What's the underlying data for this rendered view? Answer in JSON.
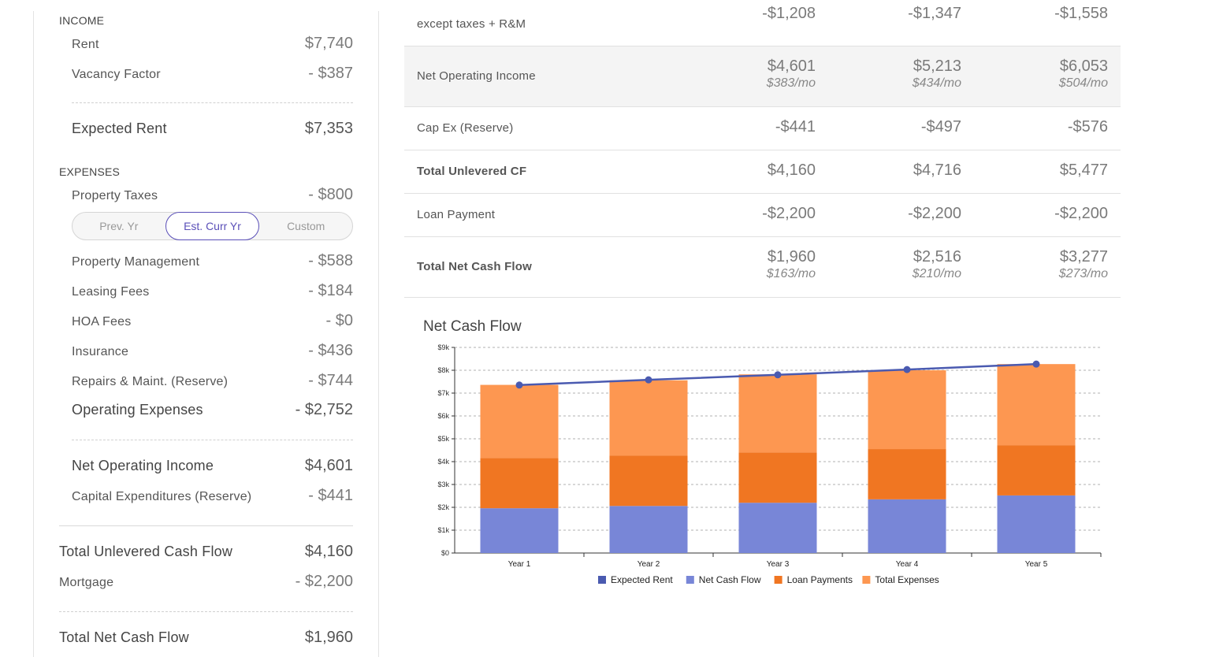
{
  "summary": {
    "income_label": "INCOME",
    "rent_label": "Rent",
    "rent_value": "$7,740",
    "vacancy_label": "Vacancy Factor",
    "vacancy_value": "- $387",
    "expected_rent_label": "Expected Rent",
    "expected_rent_value": "$7,353",
    "expenses_label": "EXPENSES",
    "property_taxes_label": "Property Taxes",
    "property_taxes_value": "- $800",
    "tax_options": [
      "Prev. Yr",
      "Est. Curr Yr",
      "Custom"
    ],
    "tax_selected": "Est. Curr Yr",
    "property_mgmt_label": "Property Management",
    "property_mgmt_value": "- $588",
    "leasing_label": "Leasing Fees",
    "leasing_value": "- $184",
    "hoa_label": "HOA Fees",
    "hoa_value": "- $0",
    "insurance_label": "Insurance",
    "insurance_value": "- $436",
    "repairs_label": "Repairs & Maint. (Reserve)",
    "repairs_value": "- $744",
    "opex_label": "Operating Expenses",
    "opex_value": "- $2,752",
    "noi_label": "Net Operating Income",
    "noi_value": "$4,601",
    "capex_label": "Capital Expenditures (Reserve)",
    "capex_value": "- $441",
    "tucf_label": "Total Unlevered Cash Flow",
    "tucf_value": "$4,160",
    "mortgage_label": "Mortgage",
    "mortgage_value": "- $2,200",
    "tncf_label": "Total Net Cash Flow",
    "tncf_value": "$1,960"
  },
  "table": {
    "rows": [
      {
        "label": "except taxes + R&M",
        "values": [
          "-$1,208",
          "-$1,347",
          "-$1,558"
        ]
      },
      {
        "label": "Net Operating Income",
        "values": [
          "$4,601",
          "$5,213",
          "$6,053"
        ],
        "monthly": [
          "$383",
          "$434",
          "$504"
        ]
      },
      {
        "label": "Cap Ex (Reserve)",
        "values": [
          "-$441",
          "-$497",
          "-$576"
        ]
      },
      {
        "label": "Total Unlevered CF",
        "values": [
          "$4,160",
          "$4,716",
          "$5,477"
        ]
      },
      {
        "label": "Loan Payment",
        "values": [
          "-$2,200",
          "-$2,200",
          "-$2,200"
        ]
      },
      {
        "label": "Total Net Cash Flow",
        "values": [
          "$1,960",
          "$2,516",
          "$3,277"
        ],
        "monthly": [
          "$163",
          "$210",
          "$273"
        ]
      }
    ],
    "mo_suffix": "/mo"
  },
  "chart_data": {
    "type": "bar",
    "title": "Net Cash Flow",
    "categories": [
      "Year 1",
      "Year 2",
      "Year 3",
      "Year 4",
      "Year 5"
    ],
    "y_ticks": [
      "$0",
      "$1k",
      "$2k",
      "$3k",
      "$4k",
      "$5k",
      "$6k",
      "$7k",
      "$8k",
      "$9k"
    ],
    "ylim": [
      0,
      9000
    ],
    "stacked": true,
    "grid": true,
    "legend_position": "bottom",
    "series": [
      {
        "name": "Net Cash Flow",
        "type": "bar",
        "color": "#7886d7",
        "values": [
          1960,
          2060,
          2200,
          2350,
          2520
        ]
      },
      {
        "name": "Loan Payments",
        "type": "bar",
        "color": "#f07622",
        "values": [
          2200,
          2200,
          2200,
          2200,
          2200
        ]
      },
      {
        "name": "Total Expenses",
        "type": "bar",
        "color": "#fd9751",
        "values": [
          3200,
          3300,
          3420,
          3450,
          3550
        ]
      },
      {
        "name": "Expected Rent",
        "type": "line",
        "color": "#4a5ab0",
        "values": [
          7353,
          7580,
          7800,
          8030,
          8270
        ]
      }
    ],
    "legend_order": [
      "Expected Rent",
      "Net Cash Flow",
      "Loan Payments",
      "Total Expenses"
    ]
  }
}
